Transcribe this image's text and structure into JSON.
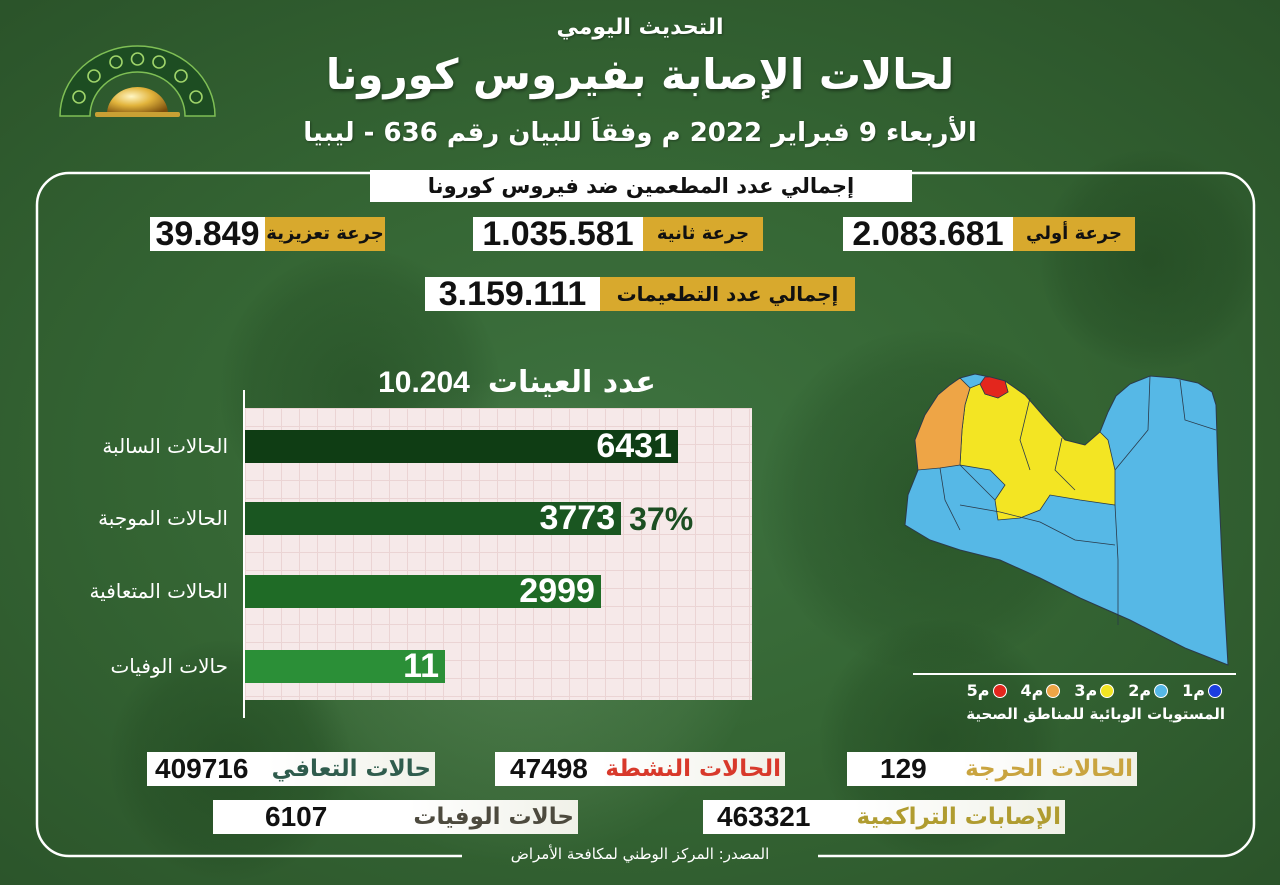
{
  "header": {
    "kicker": "التحديث اليومي",
    "title": "لحالات الإصابة بفيروس كورونا",
    "subtitle": "الأربعاء 9 فبراير 2022 م وفقاَ للبيان رقم 636 - ليبيا"
  },
  "vaccination": {
    "title": "إجمالي عدد المطعمين ضد فيروس كورونا",
    "first_dose": {
      "label": "جرعة أولي",
      "value": "2.083.681"
    },
    "second_dose": {
      "label": "جرعة ثانية",
      "value": "1.035.581"
    },
    "booster_dose": {
      "label": "جرعة تعزيزية",
      "value": "39.849"
    },
    "total": {
      "label": "إجمالي عدد التطعيمات",
      "value": "3.159.111"
    }
  },
  "chart_data": {
    "type": "bar",
    "title": "عدد العينات",
    "title_value": "10.204",
    "categories": [
      "الحالات السالبة",
      "الحالات الموجبة",
      "الحالات المتعافية",
      "حالات الوفيات"
    ],
    "values": [
      6431,
      3773,
      2999,
      11
    ],
    "annotations": [
      {
        "index": 1,
        "text": "37%"
      }
    ],
    "colors": [
      "#0f3d14",
      "#1a5621",
      "#1f6b26",
      "#2b8f37"
    ],
    "xlabel": "",
    "ylabel": "",
    "grid": true
  },
  "map": {
    "levels": [
      {
        "label": "م1",
        "color": "#1b3de0"
      },
      {
        "label": "م2",
        "color": "#56b8e6"
      },
      {
        "label": "م3",
        "color": "#f3e523"
      },
      {
        "label": "م4",
        "color": "#eea546"
      },
      {
        "label": "م5",
        "color": "#e3261d"
      }
    ],
    "legend_title": "المستويات الوبائية للمناطق الصحية"
  },
  "stats": {
    "critical": {
      "label": "الحالات الحرجة",
      "value": "129",
      "color": "#c9a43f"
    },
    "active": {
      "label": "الحالات النشطة",
      "value": "47498",
      "color": "#d8392b"
    },
    "recovered": {
      "label": "حالات التعافي",
      "value": "409716",
      "color": "#2f5c4d"
    },
    "cumulative": {
      "label": "الإصابات التراكمية",
      "value": "463321",
      "color": "#b09c30"
    },
    "deaths": {
      "label": "حالات الوفيات",
      "value": "6107",
      "color": "#4d4a3e"
    }
  },
  "source": "المصدر: المركز الوطني لمكافحة الأمراض",
  "theme": {
    "gold": "#d8a92d"
  }
}
